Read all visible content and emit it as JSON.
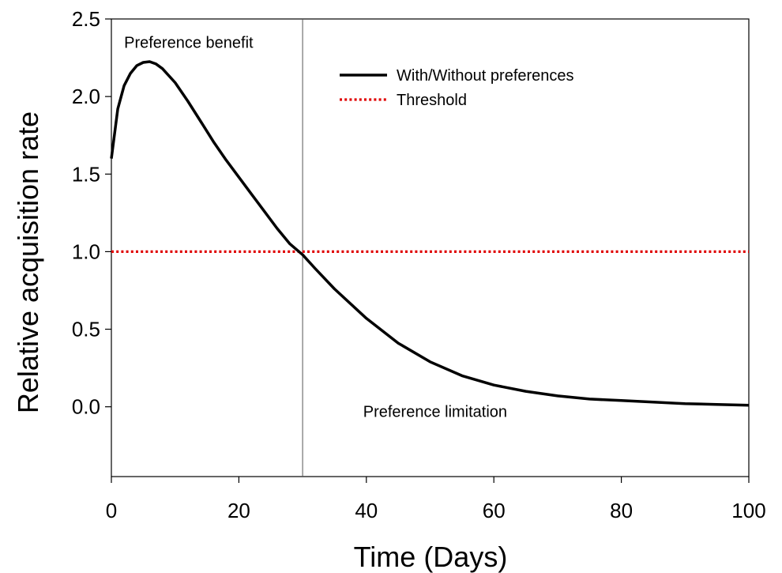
{
  "chart_data": {
    "type": "line",
    "xlabel": "Time (Days)",
    "ylabel": "Relative acquisition rate",
    "xlim": [
      0,
      100
    ],
    "ylim": [
      -0.45,
      2.5
    ],
    "x_ticks": [
      "0",
      "20",
      "40",
      "60",
      "80",
      "100"
    ],
    "y_ticks": [
      "0.0",
      "0.5",
      "1.0",
      "1.5",
      "2.0",
      "2.5"
    ],
    "grid": false,
    "legend_position": "top-right",
    "series": [
      {
        "name": "With/Without preferences",
        "color": "#000000",
        "style": "solid",
        "x": [
          0,
          1,
          2,
          3,
          4,
          5,
          6,
          7,
          8,
          10,
          12,
          14,
          16,
          18,
          20,
          22,
          24,
          26,
          28,
          30,
          32,
          35,
          40,
          45,
          50,
          55,
          60,
          65,
          70,
          75,
          80,
          85,
          90,
          95,
          100
        ],
        "y": [
          1.6,
          1.92,
          2.07,
          2.15,
          2.2,
          2.22,
          2.225,
          2.21,
          2.18,
          2.09,
          1.97,
          1.84,
          1.71,
          1.59,
          1.48,
          1.37,
          1.26,
          1.15,
          1.05,
          0.98,
          0.89,
          0.76,
          0.57,
          0.41,
          0.29,
          0.2,
          0.14,
          0.1,
          0.07,
          0.05,
          0.04,
          0.03,
          0.02,
          0.015,
          0.01
        ]
      },
      {
        "name": "Threshold",
        "color": "#e00000",
        "style": "dotted",
        "x": [
          0,
          100
        ],
        "y": [
          1.0,
          1.0
        ]
      }
    ],
    "vertical_line": {
      "x": 30,
      "color": "#555555"
    },
    "annotations": [
      {
        "text": "Preference benefit",
        "x": 2,
        "y": 2.35
      },
      {
        "text": "Preference limitation",
        "x": 39.5,
        "y": -0.03
      }
    ]
  }
}
